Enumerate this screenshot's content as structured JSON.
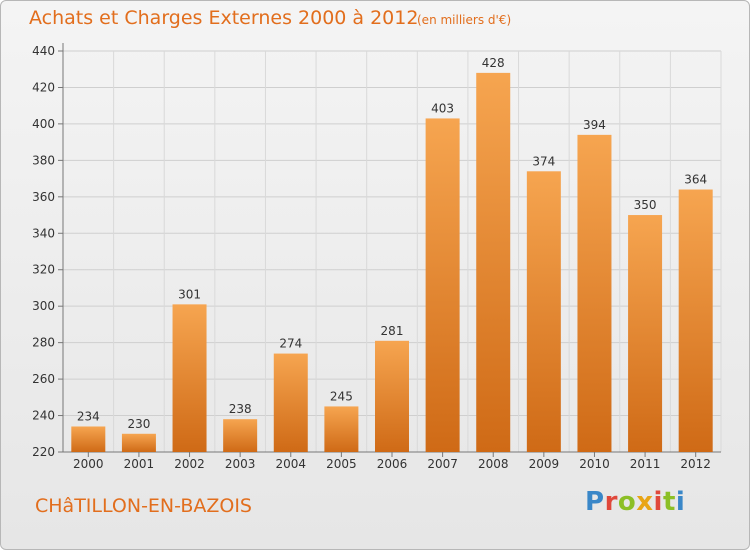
{
  "header": {
    "title": "Achats et Charges Externes 2000 à 2012",
    "unit": "(en milliers d'€)"
  },
  "footer": {
    "place": "CHâTILLON-EN-BAZOIS",
    "logo": "Proxiti"
  },
  "colors": {
    "accent": "#e26e1d",
    "bar_light": "#f6a550",
    "bar_dark": "#cf6a16",
    "logo_blue": "#3a87c8",
    "logo_green": "#8cbf26",
    "logo_yellow": "#e8a516",
    "logo_red": "#e0483b"
  },
  "chart_data": {
    "type": "bar",
    "title": "Achats et Charges Externes 2000 à 2012",
    "xlabel": "",
    "ylabel": "",
    "categories": [
      "2000",
      "2001",
      "2002",
      "2003",
      "2004",
      "2005",
      "2006",
      "2007",
      "2008",
      "2009",
      "2010",
      "2011",
      "2012"
    ],
    "values": [
      234,
      230,
      301,
      238,
      274,
      245,
      281,
      403,
      428,
      374,
      394,
      350,
      364
    ],
    "ylim": [
      220,
      440
    ],
    "yticks": [
      220,
      240,
      260,
      280,
      300,
      320,
      340,
      360,
      380,
      400,
      420,
      440
    ],
    "grid": true,
    "legend": "none"
  }
}
